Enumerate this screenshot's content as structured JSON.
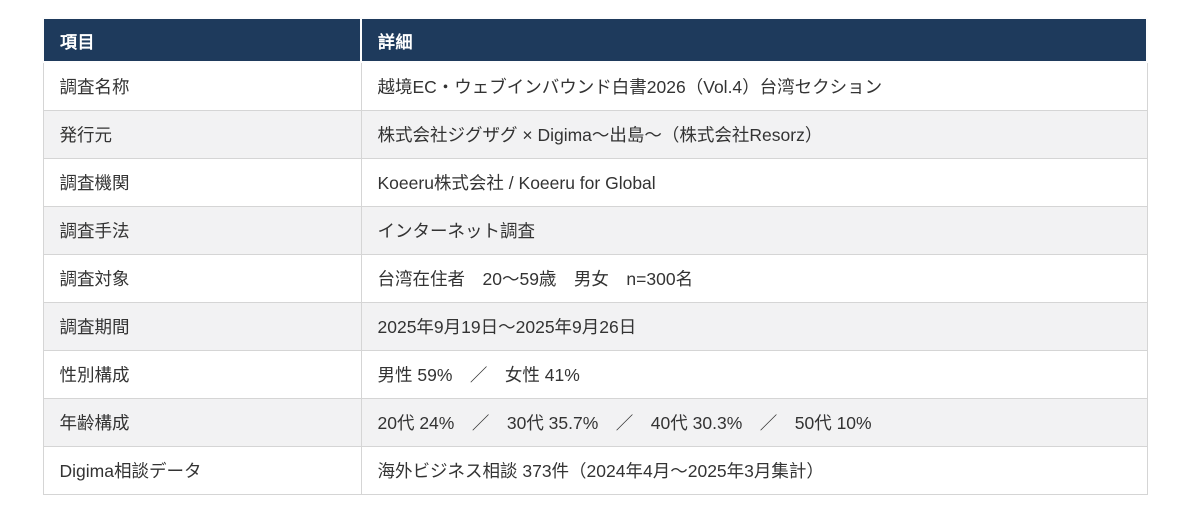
{
  "table": {
    "header": {
      "col1": "項目",
      "col2": "詳細"
    },
    "rows": [
      {
        "label": "調査名称",
        "value": "越境EC・ウェブインバウンド白書2026（Vol.4）台湾セクション"
      },
      {
        "label": "発行元",
        "value": "株式会社ジグザグ × Digima〜出島〜（株式会社Resorz）"
      },
      {
        "label": "調査機関",
        "value": "Koeeru株式会社 / Koeeru for Global"
      },
      {
        "label": "調査手法",
        "value": "インターネット調査"
      },
      {
        "label": "調査対象",
        "value": "台湾在住者　20〜59歳　男女　n=300名"
      },
      {
        "label": "調査期間",
        "value": "2025年9月19日〜2025年9月26日"
      },
      {
        "label": "性別構成",
        "value": "男性 59%　／　女性 41%"
      },
      {
        "label": "年齢構成",
        "value": "20代 24%　／　30代 35.7%　／　40代 30.3%　／　50代 10%"
      },
      {
        "label": "Digima相談データ",
        "value": "海外ビジネス相談 373件（2024年4月〜2025年3月集計）"
      }
    ]
  },
  "colors": {
    "header_bg": "#1e3a5c",
    "header_text": "#ffffff",
    "row_alt_bg": "#f2f2f3",
    "border": "#d5d5d5",
    "body_text": "#333333"
  }
}
